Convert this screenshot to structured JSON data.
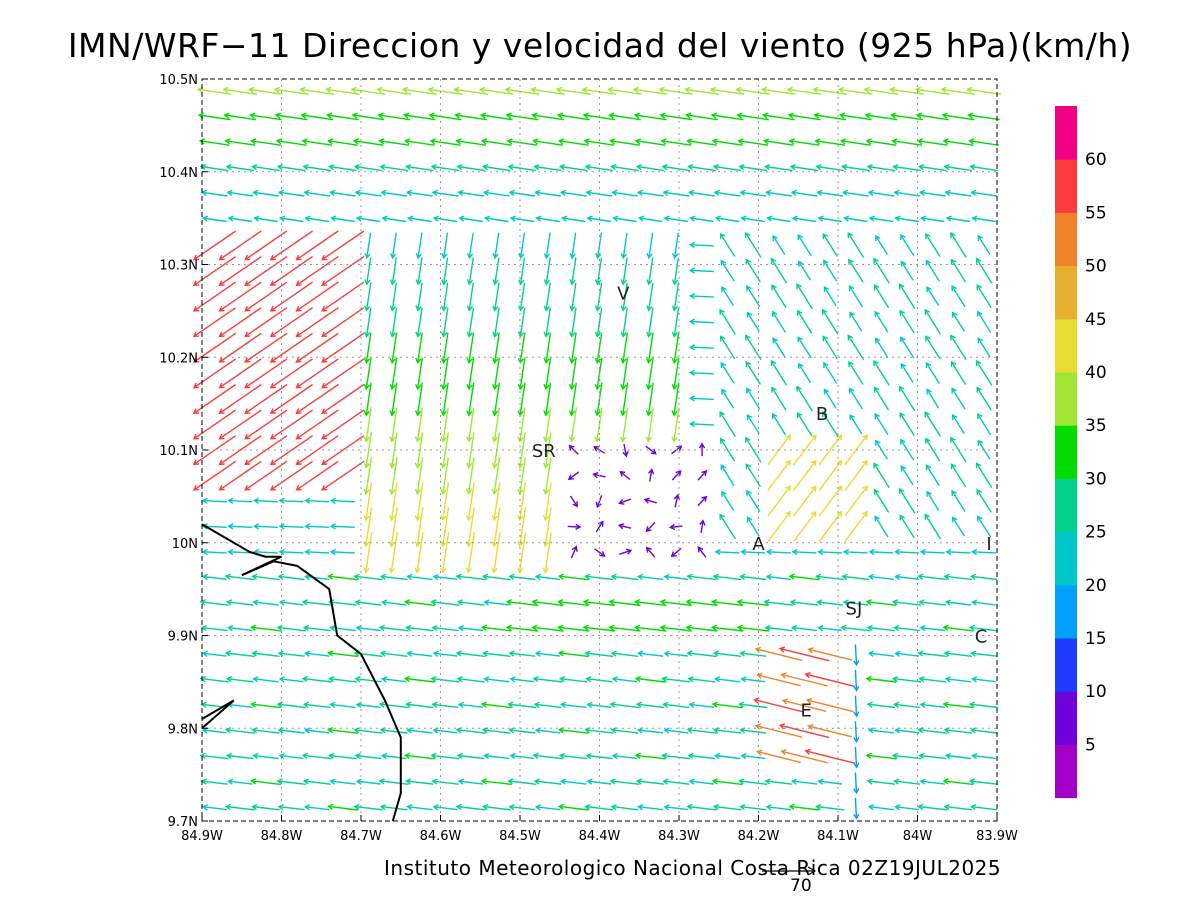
{
  "title": "IMN/WRF−11 Direccion y velocidad del viento (925 hPa)(km/h)",
  "footer": "Instituto Meteorologico Nacional Costa Rica 02Z19JUL2025",
  "reference_vector": {
    "value": "70"
  },
  "axes": {
    "x_ticks": [
      "84.9W",
      "84.8W",
      "84.7W",
      "84.6W",
      "84.5W",
      "84.4W",
      "84.3W",
      "84.2W",
      "84.1W",
      "84W",
      "83.9W"
    ],
    "y_ticks": [
      "10.5N",
      "10.4N",
      "10.3N",
      "10.2N",
      "10.1N",
      "10N",
      "9.9N",
      "9.8N",
      "9.7N"
    ],
    "lon_range": [
      -84.9,
      -83.9
    ],
    "lat_range": [
      9.7,
      10.5
    ]
  },
  "cities": [
    {
      "code": "V",
      "lon": -84.37,
      "lat": 10.27
    },
    {
      "code": "B",
      "lon": -84.12,
      "lat": 10.14
    },
    {
      "code": "SR",
      "lon": -84.47,
      "lat": 10.1
    },
    {
      "code": "A",
      "lon": -84.2,
      "lat": 10.0
    },
    {
      "code": "I",
      "lon": -83.91,
      "lat": 10.0
    },
    {
      "code": "SJ",
      "lon": -84.08,
      "lat": 9.93
    },
    {
      "code": "C",
      "lon": -83.92,
      "lat": 9.9
    },
    {
      "code": "E",
      "lon": -84.14,
      "lat": 9.82
    }
  ],
  "colorbar": {
    "labels": [
      "5",
      "10",
      "15",
      "20",
      "25",
      "30",
      "35",
      "40",
      "45",
      "50",
      "55",
      "60"
    ],
    "colors": [
      "#a000c8",
      "#6e00dc",
      "#1e3cff",
      "#00a0ff",
      "#00c8c8",
      "#00d28c",
      "#00dc00",
      "#a0e632",
      "#e6dc32",
      "#e6af2d",
      "#f08228",
      "#fa3c3c",
      "#f00082"
    ]
  },
  "coastline": [
    [
      -84.9,
      10.02
    ],
    [
      -84.84,
      9.99
    ],
    [
      -84.82,
      9.985
    ],
    [
      -84.8,
      9.985
    ],
    [
      -84.85,
      9.965
    ],
    [
      -84.81,
      9.98
    ],
    [
      -84.78,
      9.975
    ],
    [
      -84.74,
      9.95
    ],
    [
      -84.73,
      9.9
    ],
    [
      -84.7,
      9.88
    ],
    [
      -84.67,
      9.83
    ],
    [
      -84.65,
      9.79
    ],
    [
      -84.65,
      9.73
    ],
    [
      -84.66,
      9.7
    ]
  ],
  "coastline2": [
    [
      -84.9,
      9.81
    ],
    [
      -84.86,
      9.83
    ],
    [
      -84.9,
      9.8
    ]
  ],
  "chart_data": {
    "type": "vector",
    "quantity": "wind direction and speed at 925 hPa",
    "units": "km/h",
    "grid": true,
    "wind_field_samples": [
      {
        "lon": -84.5,
        "lat": 10.49,
        "speed": 32,
        "dir": "E"
      },
      {
        "lon": -84.3,
        "lat": 10.42,
        "speed": 35,
        "dir": "E"
      },
      {
        "lon": -84.85,
        "lat": 10.28,
        "speed": 60,
        "dir": "NE"
      },
      {
        "lon": -84.78,
        "lat": 10.13,
        "speed": 62,
        "dir": "NE"
      },
      {
        "lon": -84.6,
        "lat": 10.1,
        "speed": 40,
        "dir": "N"
      },
      {
        "lon": -84.35,
        "lat": 10.05,
        "speed": 8,
        "dir": "variable"
      },
      {
        "lon": -84.4,
        "lat": 9.92,
        "speed": 30,
        "dir": "E"
      },
      {
        "lon": -84.15,
        "lat": 9.85,
        "speed": 55,
        "dir": "E"
      },
      {
        "lon": -84.18,
        "lat": 9.83,
        "speed": 60,
        "dir": "E"
      },
      {
        "lon": -84.05,
        "lat": 9.75,
        "speed": 30,
        "dir": "E"
      }
    ]
  }
}
